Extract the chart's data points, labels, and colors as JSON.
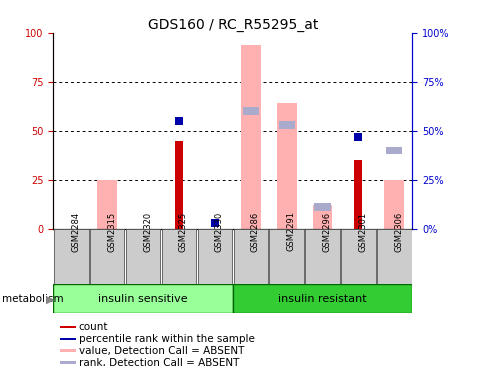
{
  "title": "GDS160 / RC_R55295_at",
  "samples": [
    "GSM2284",
    "GSM2315",
    "GSM2320",
    "GSM2325",
    "GSM2330",
    "GSM2286",
    "GSM2291",
    "GSM2296",
    "GSM2301",
    "GSM2306"
  ],
  "groups": {
    "insulin sensitive": [
      0,
      1,
      2,
      3,
      4
    ],
    "insulin resistant": [
      5,
      6,
      7,
      8,
      9
    ]
  },
  "count": [
    0,
    0,
    0,
    45,
    0,
    0,
    0,
    0,
    35,
    0
  ],
  "percentile_rank": [
    0,
    0,
    0,
    55,
    3,
    0,
    0,
    0,
    47,
    0
  ],
  "value_absent": [
    0,
    25,
    0,
    0,
    0,
    94,
    64,
    12,
    0,
    25
  ],
  "rank_absent": [
    0,
    0,
    0,
    0,
    0,
    60,
    53,
    11,
    0,
    40
  ],
  "ylim": [
    0,
    100
  ],
  "yticks": [
    0,
    25,
    50,
    75,
    100
  ],
  "colors": {
    "count": "#cc0000",
    "percentile_rank": "#0000aa",
    "value_absent": "#ffb0b0",
    "rank_absent": "#aaaacc",
    "group_sensitive": "#99ff99",
    "group_resistant": "#33cc33",
    "sample_box": "#cccccc",
    "left_axis": "#cc0000",
    "right_axis": "#0000cc"
  },
  "legend_items": [
    {
      "label": "count",
      "color": "#cc0000"
    },
    {
      "label": "percentile rank within the sample",
      "color": "#0000aa"
    },
    {
      "label": "value, Detection Call = ABSENT",
      "color": "#ffb0b0"
    },
    {
      "label": "rank, Detection Call = ABSENT",
      "color": "#aaaacc"
    }
  ]
}
